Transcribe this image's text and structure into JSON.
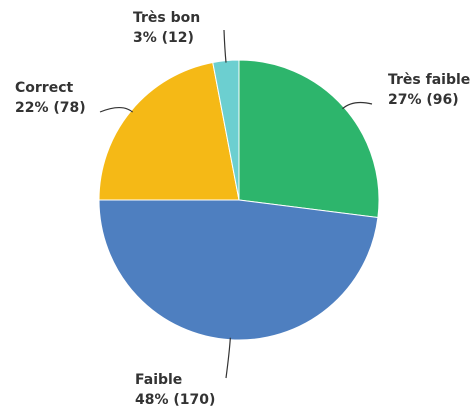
{
  "chart_data": {
    "type": "pie",
    "categories": [
      "Très faible",
      "Faible",
      "Correct",
      "Très bon"
    ],
    "values": [
      27,
      48,
      22,
      3
    ],
    "value_labels": [
      "27% (96)",
      "48% (170)",
      "22% (78)",
      "3% (12)"
    ],
    "colors": [
      "#2db56c",
      "#4e7fc0",
      "#f5b916",
      "#6ccfd0"
    ]
  }
}
